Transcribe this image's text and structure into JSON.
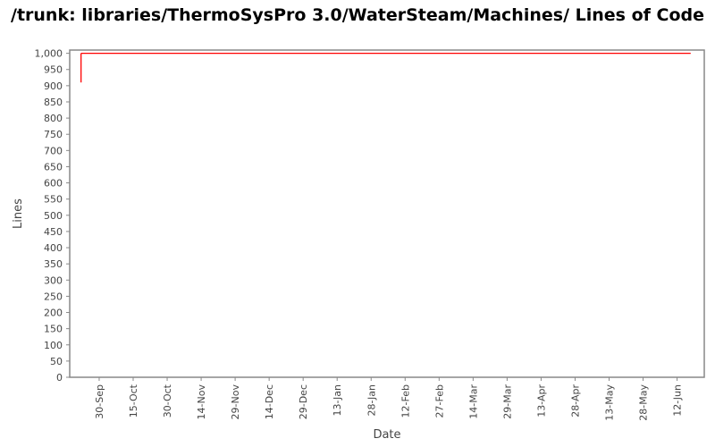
{
  "chart_data": {
    "type": "line",
    "title": "/trunk: libraries/ThermoSysPro 3.0/WaterSteam/Machines/ Lines of Code",
    "xlabel": "Date",
    "ylabel": "Lines",
    "ylim": [
      0,
      1010
    ],
    "xlim": [
      "17-Sep",
      "24-Jun"
    ],
    "y_ticks": [
      "0",
      "50",
      "100",
      "150",
      "200",
      "250",
      "300",
      "350",
      "400",
      "450",
      "500",
      "550",
      "600",
      "650",
      "700",
      "750",
      "800",
      "850",
      "900",
      "950",
      "1,000"
    ],
    "x_ticks": [
      "30-Sep",
      "15-Oct",
      "30-Oct",
      "14-Nov",
      "29-Nov",
      "14-Dec",
      "29-Dec",
      "13-Jan",
      "28-Jan",
      "12-Feb",
      "27-Feb",
      "14-Mar",
      "29-Mar",
      "13-Apr",
      "28-Apr",
      "13-May",
      "28-May",
      "12-Jun"
    ],
    "grid": false,
    "series": [
      {
        "color": "#ff0000",
        "points": [
          {
            "date": "22-Sep",
            "lines": 910
          },
          {
            "date": "22-Sep",
            "lines": 1000
          },
          {
            "date": "18-Jun",
            "lines": 1000
          }
        ]
      }
    ]
  }
}
